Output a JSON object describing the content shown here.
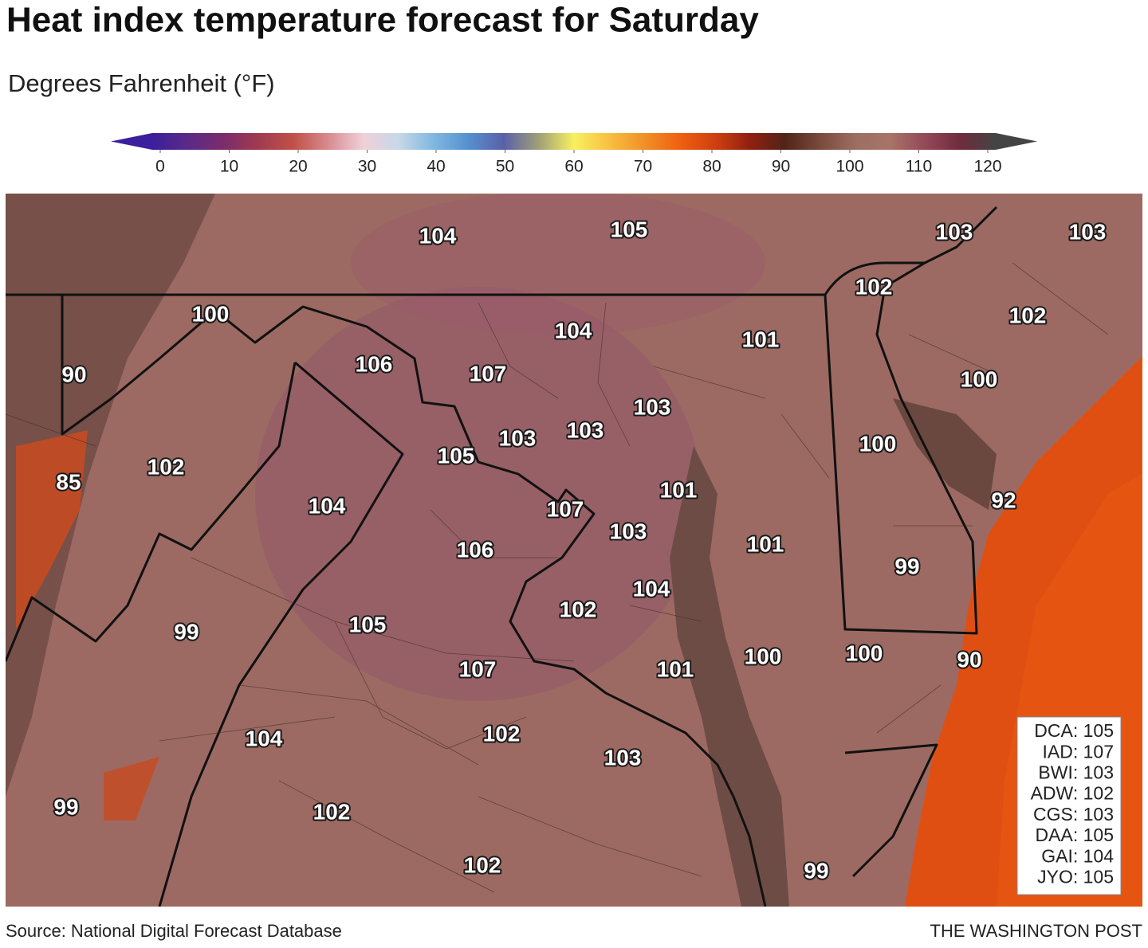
{
  "title": "Heat index temperature forecast for Saturday",
  "subtitle": "Degrees Fahrenheit (°F)",
  "legend": {
    "ticks": [
      0,
      10,
      20,
      30,
      40,
      50,
      60,
      70,
      80,
      90,
      100,
      110,
      120
    ],
    "colors": [
      "#3b1f9c",
      "#5a2a88",
      "#7a2c6c",
      "#a03a50",
      "#c05048",
      "#d88a90",
      "#f0d0d8",
      "#c8d8e8",
      "#80b8e0",
      "#5590d0",
      "#5a60a8",
      "#a0a078",
      "#f8f060",
      "#f8c040",
      "#f09028",
      "#f06010",
      "#d04010",
      "#902010",
      "#502418",
      "#7a4a3c",
      "#9c6e62",
      "#a87468",
      "#944858",
      "#6e2c3c",
      "#444444"
    ]
  },
  "map_labels": [
    104,
    105,
    103,
    103,
    102,
    100,
    104,
    101,
    102,
    90,
    106,
    107,
    100,
    103,
    103,
    103,
    105,
    100,
    102,
    85,
    101,
    92,
    104,
    107,
    103,
    101,
    106,
    99,
    104,
    102,
    99,
    105,
    100,
    100,
    90,
    107,
    101,
    104,
    102,
    103,
    99,
    102,
    102,
    99
  ],
  "stations": [
    "DCA: 105",
    "IAD: 107",
    "BWI: 103",
    "ADW: 102",
    "CGS: 103",
    "DAA: 105",
    "GAI: 104",
    "JYO: 105"
  ],
  "source": "Source: National Digital Forecast Database",
  "credit": "THE WASHINGTON POST"
}
